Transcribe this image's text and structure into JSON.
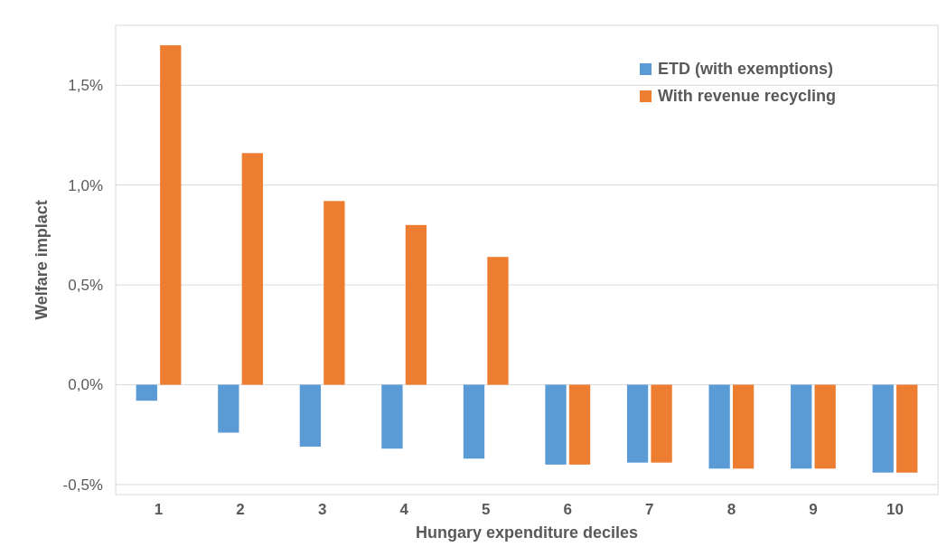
{
  "chart_data": {
    "type": "bar",
    "xlabel": "Hungary expenditure deciles",
    "ylabel": "Welfare implact",
    "categories": [
      "1",
      "2",
      "3",
      "4",
      "5",
      "6",
      "7",
      "8",
      "9",
      "10"
    ],
    "series": [
      {
        "name": "ETD (with exemptions)",
        "color": "#5b9bd5",
        "values": [
          -0.08,
          -0.24,
          -0.31,
          -0.32,
          -0.37,
          -0.4,
          -0.39,
          -0.42,
          -0.42,
          -0.44
        ]
      },
      {
        "name": "With revenue recycling",
        "color": "#ed7d31",
        "values": [
          1.7,
          1.16,
          0.92,
          0.8,
          0.64,
          -0.4,
          -0.39,
          -0.42,
          -0.42,
          -0.44
        ]
      }
    ],
    "ylim": [
      -0.55,
      1.8
    ],
    "yticks": [
      {
        "value": -0.5,
        "label": "-0,5%"
      },
      {
        "value": 0,
        "label": "0,0%"
      },
      {
        "value": 0.5,
        "label": "0,5%"
      },
      {
        "value": 1,
        "label": "1,0%"
      },
      {
        "value": 1.5,
        "label": "1,5%"
      }
    ],
    "grid": "y",
    "legend": "top right"
  }
}
